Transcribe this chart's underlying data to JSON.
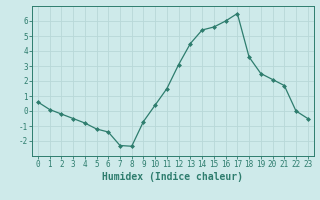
{
  "x": [
    0,
    1,
    2,
    3,
    4,
    5,
    6,
    7,
    8,
    9,
    10,
    11,
    12,
    13,
    14,
    15,
    16,
    17,
    18,
    19,
    20,
    21,
    22,
    23
  ],
  "y": [
    0.6,
    0.1,
    -0.2,
    -0.5,
    -0.8,
    -1.2,
    -1.4,
    -2.3,
    -2.35,
    -0.7,
    0.4,
    1.5,
    3.1,
    4.5,
    5.4,
    5.6,
    6.0,
    6.5,
    3.6,
    2.5,
    2.1,
    1.7,
    0.0,
    -0.5
  ],
  "line_color": "#2e7d6e",
  "marker": "D",
  "marker_size": 2,
  "bg_color": "#ceeaea",
  "grid_color": "#b8d8d8",
  "xlabel": "Humidex (Indice chaleur)",
  "xlim": [
    -0.5,
    23.5
  ],
  "ylim": [
    -3.0,
    7.0
  ],
  "xticks": [
    0,
    1,
    2,
    3,
    4,
    5,
    6,
    7,
    8,
    9,
    10,
    11,
    12,
    13,
    14,
    15,
    16,
    17,
    18,
    19,
    20,
    21,
    22,
    23
  ],
  "yticks": [
    -2,
    -1,
    0,
    1,
    2,
    3,
    4,
    5,
    6
  ],
  "tick_color": "#2e7d6e",
  "xlabel_color": "#2e7d6e",
  "axis_color": "#2e7d6e",
  "tick_fontsize": 5.5,
  "xlabel_fontsize": 7.0
}
